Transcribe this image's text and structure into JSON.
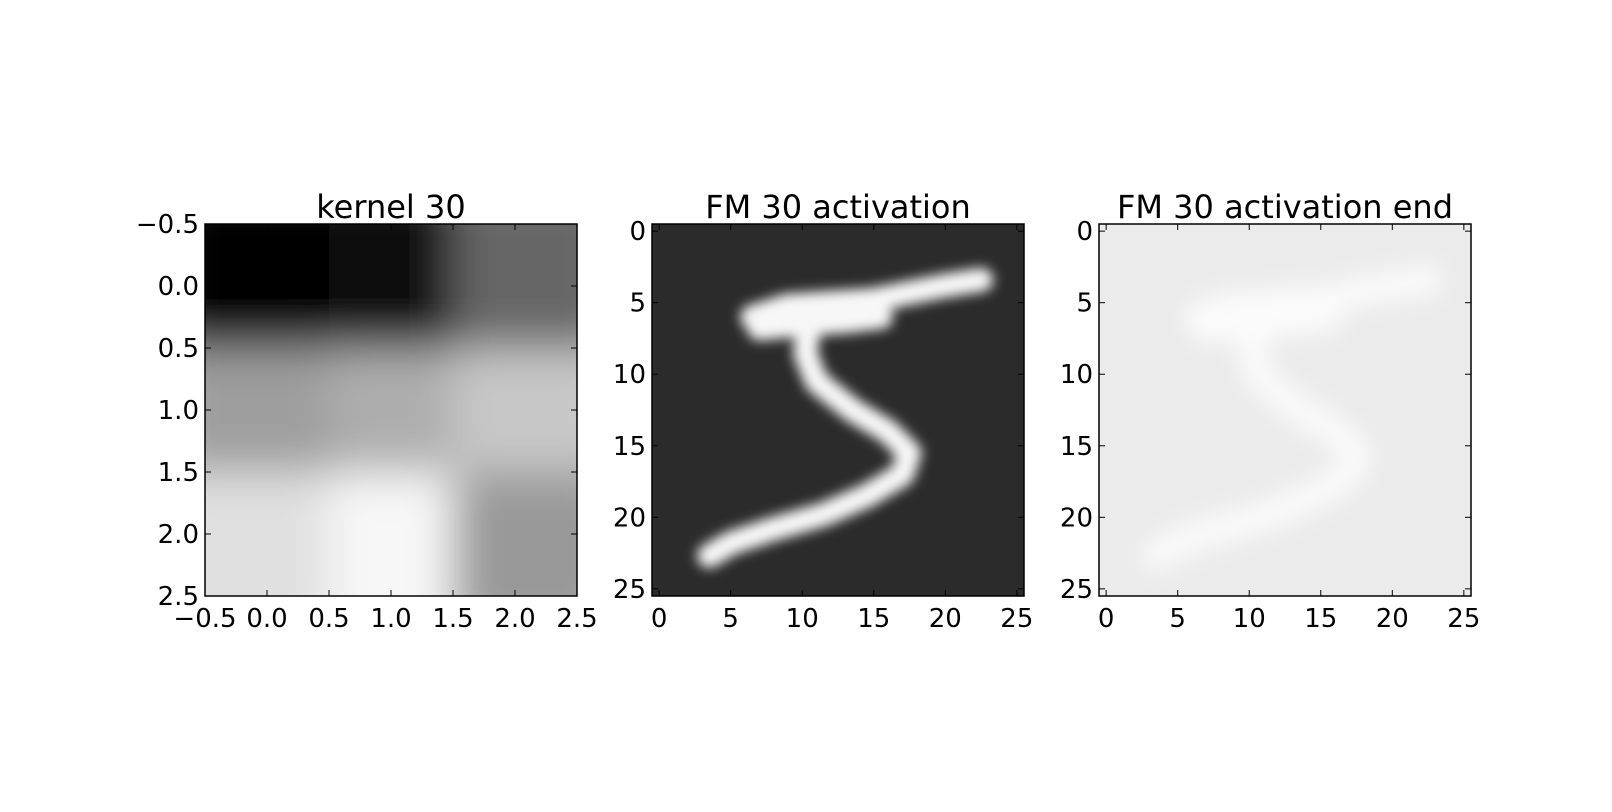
{
  "chart_data": [
    {
      "type": "heatmap",
      "title": "kernel 30",
      "colormap": "gray",
      "grid": false,
      "xlim": [
        -0.5,
        2.5
      ],
      "ylim": [
        2.5,
        -0.5
      ],
      "xticks": [
        -0.5,
        0.0,
        0.5,
        1.0,
        1.5,
        2.0,
        2.5
      ],
      "yticks": [
        -0.5,
        0.0,
        0.5,
        1.0,
        1.5,
        2.0,
        2.5
      ],
      "xtick_labels": [
        "−0.5",
        "0.0",
        "0.5",
        "1.0",
        "1.5",
        "2.0",
        "2.5"
      ],
      "ytick_labels": [
        "−0.5",
        "0.0",
        "0.5",
        "1.0",
        "1.5",
        "2.0",
        "2.5"
      ],
      "values": [
        [
          0.0,
          0.03,
          0.4
        ],
        [
          0.62,
          0.68,
          0.78
        ],
        [
          0.88,
          0.97,
          0.6
        ]
      ]
    },
    {
      "type": "heatmap",
      "title": "FM 30 activation",
      "colormap": "gray",
      "grid": false,
      "xlim": [
        -0.5,
        25.5
      ],
      "ylim": [
        25.5,
        -0.5
      ],
      "xticks": [
        0,
        5,
        10,
        15,
        20,
        25
      ],
      "yticks": [
        0,
        5,
        10,
        15,
        20,
        25
      ],
      "xtick_labels": [
        "0",
        "5",
        "10",
        "15",
        "20",
        "25"
      ],
      "ytick_labels": [
        "0",
        "5",
        "10",
        "15",
        "20",
        "25"
      ],
      "background_level": 0.17,
      "stroke_level": 0.97,
      "description_shape": "handwritten digit 5"
    },
    {
      "type": "heatmap",
      "title": "FM 30 activation end",
      "colormap": "gray",
      "grid": false,
      "xlim": [
        -0.5,
        25.5
      ],
      "ylim": [
        25.5,
        -0.5
      ],
      "xticks": [
        0,
        5,
        10,
        15,
        20,
        25
      ],
      "yticks": [
        0,
        5,
        10,
        15,
        20,
        25
      ],
      "xtick_labels": [
        "0",
        "5",
        "10",
        "15",
        "20",
        "25"
      ],
      "ytick_labels": [
        "0",
        "5",
        "10",
        "15",
        "20",
        "25"
      ],
      "background_level": 0.92,
      "stroke_level": 0.99
    }
  ]
}
